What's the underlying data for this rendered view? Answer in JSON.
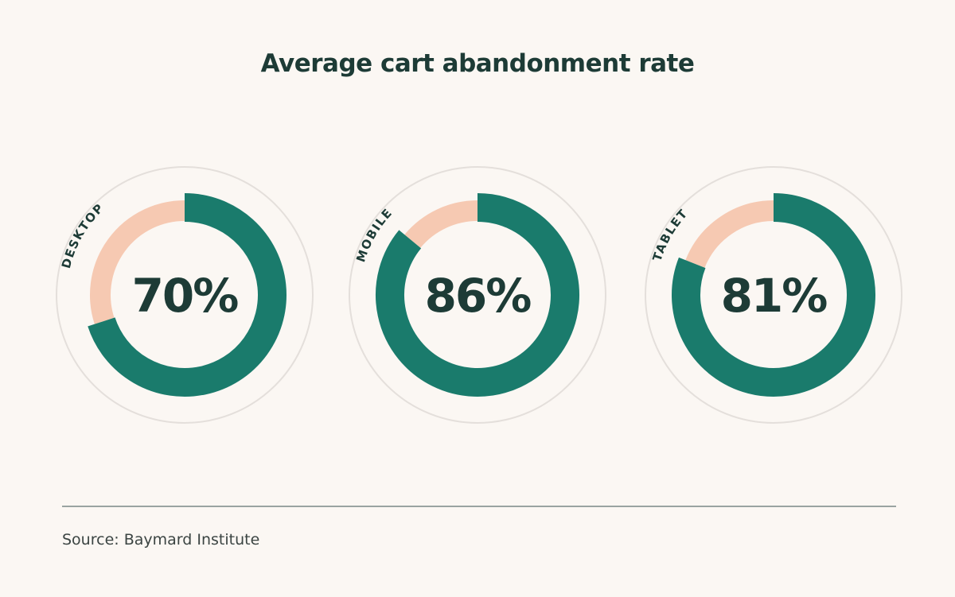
{
  "page": {
    "title": "Average cart abandonment rate",
    "source": "Source: Baymard Institute"
  },
  "colors": {
    "background": "#fbf7f3",
    "primary": "#1a7b6c",
    "remainder": "#f6c9b2",
    "outline": "#e4dfdb",
    "text": "#1d3b36"
  },
  "chart_data": {
    "type": "pie",
    "title": "Average cart abandonment rate",
    "categories": [
      "DESKTOP",
      "MOBILE",
      "TABLET"
    ],
    "values": [
      70,
      86,
      81
    ],
    "value_labels": [
      "70%",
      "86%",
      "81%"
    ],
    "unit": "%",
    "max": 100
  }
}
